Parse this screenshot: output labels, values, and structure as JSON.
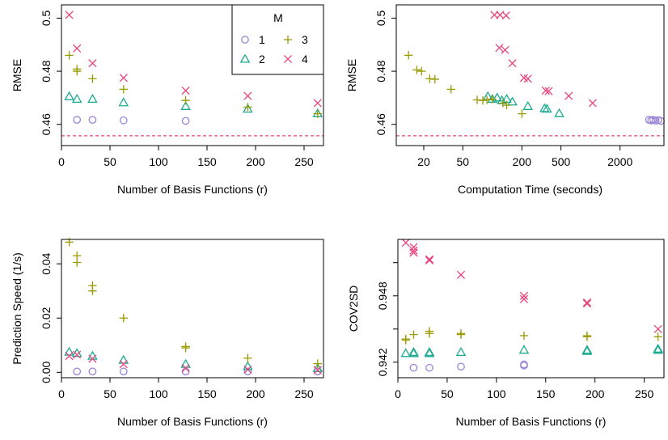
{
  "colors": {
    "1": "#9b84d6",
    "2": "#1eaa91",
    "3": "#9a9a00",
    "4": "#e8457a",
    "refline": "#e8457a"
  },
  "legend": {
    "title": "M",
    "entries": [
      {
        "key": "1",
        "symbol": "circle"
      },
      {
        "key": "2",
        "symbol": "triangle"
      },
      {
        "key": "3",
        "symbol": "plus"
      },
      {
        "key": "4",
        "symbol": "cross"
      }
    ]
  },
  "chart_data": [
    {
      "type": "scatter",
      "xlabel": "Number of Basis Functions (r)",
      "ylabel": "RMSE",
      "xlim": [
        0,
        270
      ],
      "ylim": [
        0.452,
        0.505
      ],
      "xticks": [
        0,
        50,
        100,
        150,
        200,
        250
      ],
      "yticks": [
        0.46,
        0.48,
        0.5
      ],
      "reference_line": {
        "y": 0.4557,
        "style": "dashed"
      },
      "legend": "top-right",
      "series": [
        {
          "name": "1",
          "symbol": "circle",
          "x": [
            16,
            32,
            64,
            128
          ],
          "y": [
            0.4617,
            0.4617,
            0.4615,
            0.4613
          ]
        },
        {
          "name": "2",
          "symbol": "triangle",
          "x": [
            8,
            16,
            32,
            64,
            128,
            192,
            264
          ],
          "y": [
            0.4705,
            0.4695,
            0.4695,
            0.4682,
            0.4668,
            0.4658,
            0.4641
          ]
        },
        {
          "name": "3",
          "symbol": "plus",
          "x": [
            8,
            16,
            16,
            32,
            64,
            128,
            192,
            264
          ],
          "y": [
            0.486,
            0.4808,
            0.48,
            0.4772,
            0.4732,
            0.469,
            0.4665,
            0.464
          ]
        },
        {
          "name": "4",
          "symbol": "cross",
          "x": [
            8,
            16,
            32,
            64,
            128,
            192,
            264
          ],
          "y": [
            0.5012,
            0.4886,
            0.483,
            0.4775,
            0.4727,
            0.4707,
            0.468
          ]
        }
      ]
    },
    {
      "type": "scatter",
      "xlabel": "Computation Time (seconds)",
      "ylabel": "RMSE",
      "xscale": "log",
      "xlim": [
        10.5,
        5600
      ],
      "ylim": [
        0.452,
        0.505
      ],
      "xticks": [
        20,
        50,
        200,
        500,
        2000
      ],
      "yticks": [
        0.46,
        0.48,
        0.5
      ],
      "reference_line": {
        "y": 0.4557,
        "style": "dashed"
      },
      "series": [
        {
          "name": "1",
          "symbol": "circle",
          "x": [
            3950,
            4150,
            4350,
            4600,
            4900,
            5200
          ],
          "y": [
            0.4617,
            0.4615,
            0.4617,
            0.4614,
            0.4616,
            0.4613
          ]
        },
        {
          "name": "2",
          "symbol": "triangle",
          "x": [
            90,
            100,
            112,
            125,
            140,
            160,
            230,
            340,
            360,
            480
          ],
          "y": [
            0.4705,
            0.4695,
            0.47,
            0.469,
            0.4695,
            0.4685,
            0.4668,
            0.466,
            0.4658,
            0.4641
          ]
        },
        {
          "name": "3",
          "symbol": "plus",
          "x": [
            14,
            17,
            19,
            23,
            26,
            38,
            70,
            80,
            88,
            100,
            128,
            140,
            200
          ],
          "y": [
            0.486,
            0.4805,
            0.48,
            0.4772,
            0.477,
            0.4732,
            0.4692,
            0.469,
            0.4692,
            0.4695,
            0.468,
            0.4672,
            0.464
          ]
        },
        {
          "name": "4",
          "symbol": "cross",
          "x": [
            105,
            120,
            138,
            118,
            135,
            160,
            210,
            230,
            350,
            375,
            600,
            1050
          ],
          "y": [
            0.5012,
            0.5012,
            0.501,
            0.4888,
            0.488,
            0.483,
            0.4775,
            0.4772,
            0.4727,
            0.4725,
            0.4707,
            0.468
          ]
        }
      ]
    },
    {
      "type": "scatter",
      "xlabel": "Number of Basis Functions (r)",
      "ylabel": "Prediction Speed (1/s)",
      "xlim": [
        0,
        270
      ],
      "ylim": [
        -0.002,
        0.049
      ],
      "xticks": [
        0,
        50,
        100,
        150,
        200,
        250
      ],
      "yticks": [
        0.0,
        0.02,
        0.04
      ],
      "ytick_labels": [
        "0.00",
        "0.02",
        "0.04"
      ],
      "series": [
        {
          "name": "1",
          "symbol": "circle",
          "x": [
            16,
            32,
            64,
            128,
            192,
            264
          ],
          "y": [
            0.0003,
            0.0003,
            0.0003,
            0.0003,
            0.0003,
            0.0003
          ]
        },
        {
          "name": "2",
          "symbol": "triangle",
          "x": [
            8,
            16,
            32,
            64,
            128,
            192,
            264
          ],
          "y": [
            0.0075,
            0.007,
            0.006,
            0.0045,
            0.003,
            0.0022,
            0.0015
          ]
        },
        {
          "name": "3",
          "symbol": "plus",
          "x": [
            8,
            16,
            16,
            32,
            32,
            64,
            128,
            128,
            192,
            264
          ],
          "y": [
            0.048,
            0.043,
            0.0405,
            0.032,
            0.03,
            0.02,
            0.0095,
            0.009,
            0.0052,
            0.0032
          ]
        },
        {
          "name": "4",
          "symbol": "cross",
          "x": [
            8,
            16,
            32,
            64,
            128,
            192,
            264
          ],
          "y": [
            0.006,
            0.0065,
            0.005,
            0.003,
            0.0015,
            0.001,
            0.0008
          ]
        }
      ]
    },
    {
      "type": "scatter",
      "xlabel": "Number of Basis Functions (r)",
      "ylabel": "COV2SD",
      "xlim": [
        0,
        270
      ],
      "ylim": [
        0.9406,
        0.9531
      ],
      "xticks": [
        0,
        50,
        100,
        150,
        200,
        250
      ],
      "yticks": [
        0.942,
        0.945,
        0.948,
        0.951
      ],
      "ytick_labels": [
        "0.942",
        "",
        "0.948",
        ""
      ],
      "series": [
        {
          "name": "1",
          "symbol": "circle",
          "x": [
            16,
            32,
            64,
            128,
            128
          ],
          "y": [
            0.9415,
            0.9415,
            0.9416,
            0.9418,
            0.9417
          ]
        },
        {
          "name": "2",
          "symbol": "triangle",
          "x": [
            8,
            16,
            16,
            32,
            32,
            64,
            128,
            192,
            192,
            264,
            264
          ],
          "y": [
            0.9428,
            0.9428,
            0.9429,
            0.9428,
            0.9429,
            0.9429,
            0.9431,
            0.943,
            0.9431,
            0.9431,
            0.9432
          ]
        },
        {
          "name": "3",
          "symbol": "plus",
          "x": [
            8,
            8,
            16,
            32,
            32,
            64,
            64,
            128,
            192,
            192,
            264
          ],
          "y": [
            0.944,
            0.9441,
            0.9445,
            0.9446,
            0.9448,
            0.9446,
            0.9445,
            0.9444,
            0.9443,
            0.9444,
            0.9443
          ]
        },
        {
          "name": "4",
          "symbol": "cross",
          "x": [
            8,
            16,
            16,
            16,
            32,
            32,
            64,
            128,
            128,
            192,
            192,
            264
          ],
          "y": [
            0.9528,
            0.9524,
            0.9521,
            0.9519,
            0.9513,
            0.9512,
            0.9499,
            0.948,
            0.9477,
            0.9474,
            0.9473,
            0.945
          ]
        }
      ]
    }
  ]
}
